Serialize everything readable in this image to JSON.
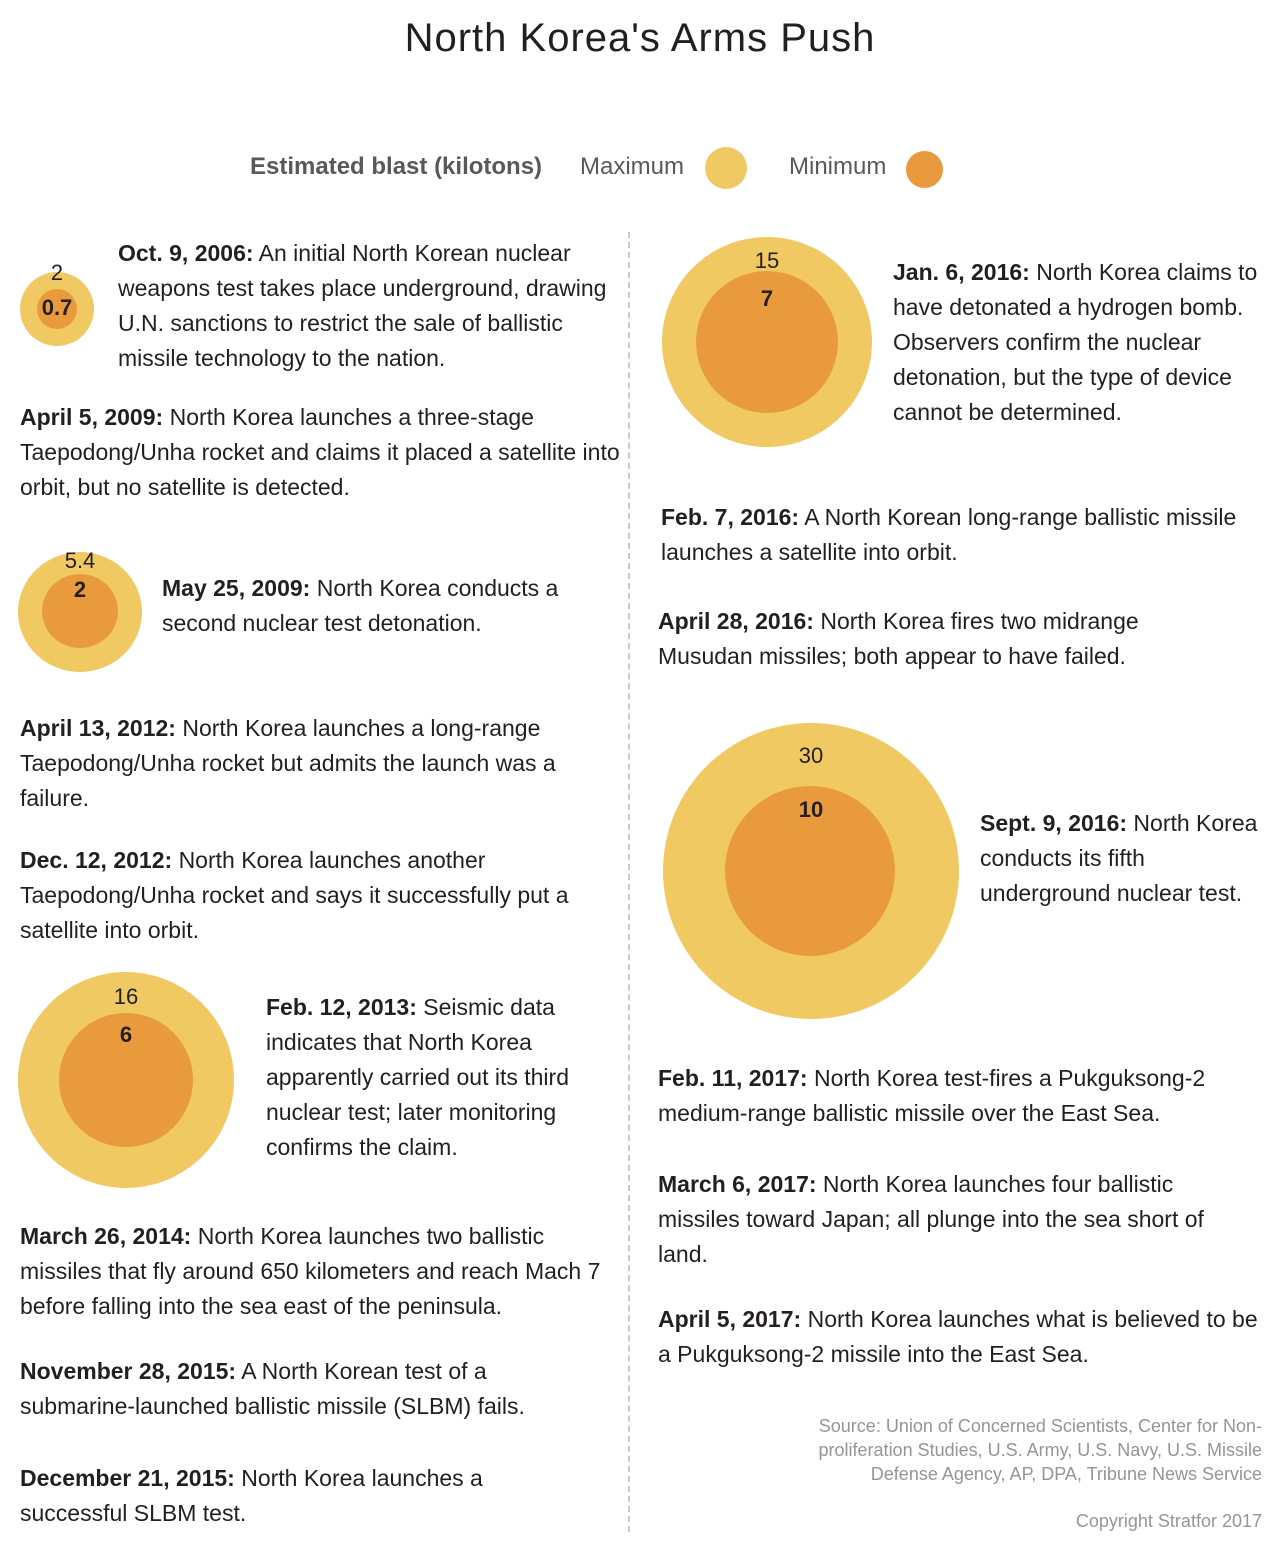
{
  "title": "North Korea's Arms Push",
  "legend": {
    "label_prefix": "Estimated blast",
    "label_units": "(kilotons)",
    "max_label": "Maximum",
    "min_label": "Minimum",
    "max_color": "#f0c963",
    "min_color": "#e99a3c"
  },
  "blasts": [
    {
      "date": "Oct. 9, 2006",
      "max": "2",
      "min": "0.7"
    },
    {
      "date": "May 25, 2009",
      "max": "5.4",
      "min": "2"
    },
    {
      "date": "Feb. 12, 2013",
      "max": "16",
      "min": "6"
    },
    {
      "date": "Jan. 6, 2016",
      "max": "15",
      "min": "7"
    },
    {
      "date": "Sept. 9, 2016",
      "max": "30",
      "min": "10"
    }
  ],
  "events": [
    {
      "date": "Oct. 9, 2006:",
      "text": "An initial North Korean nuclear weapons test takes place underground, drawing U.N. sanctions to restrict the sale of ballistic missile technology to the nation."
    },
    {
      "date": "April 5, 2009:",
      "text": "North Korea launches a three-stage Taepodong/Unha rocket and claims it placed a satellite into orbit, but no satellite is detected."
    },
    {
      "date": "May 25, 2009:",
      "text": "North Korea conducts a second nuclear test detonation."
    },
    {
      "date": "April 13, 2012:",
      "text": "North Korea launches a long-range Taepodong/Unha rocket but admits the launch was a failure."
    },
    {
      "date": "Dec. 12, 2012:",
      "text": "North Korea launches another Taepodong/Unha rocket and says it successfully put a satellite into orbit."
    },
    {
      "date": "Feb. 12, 2013:",
      "text": "Seismic data indicates that North Korea apparently carried out its third nuclear test; later monitoring confirms the claim."
    },
    {
      "date": "March 26, 2014:",
      "text": "North Korea launches two ballistic missiles that fly around 650 kilometers and reach Mach 7 before falling into the sea east of the peninsula."
    },
    {
      "date": "November 28, 2015:",
      "text": "A North Korean test of a submarine-launched ballistic missile (SLBM) fails."
    },
    {
      "date": "December 21, 2015:",
      "text": "North Korea launches a successful SLBM test."
    },
    {
      "date": "Jan. 6, 2016:",
      "text": "North Korea claims to have detonated a hydrogen bomb. Observers confirm the nuclear detonation, but the type of device cannot be determined."
    },
    {
      "date": "Feb. 7, 2016:",
      "text": "A North Korean long-range ballistic missile launches a satellite into orbit."
    },
    {
      "date": "April 28, 2016:",
      "text": "North Korea fires two midrange Musudan missiles; both appear to have failed."
    },
    {
      "date": "Sept. 9, 2016:",
      "text": "North Korea conducts its fifth underground nuclear test."
    },
    {
      "date": "Feb. 11, 2017:",
      "text": "North Korea test-fires a Pukguksong-2 medium-range ballistic missile over the East Sea."
    },
    {
      "date": "March 6, 2017:",
      "text": "North Korea launches four ballistic missiles toward Japan; all plunge into the sea short of land."
    },
    {
      "date": "April 5, 2017:",
      "text": "North Korea launches what is believed to be a Pukguksong-2 missile into the East Sea."
    }
  ],
  "source": "Source: Union of Concerned Scientists, Center for Non-proliferation Studies, U.S. Army, U.S. Navy, U.S. Missile Defense Agency, AP, DPA, Tribune News Service",
  "copyright": "Copyright Stratfor 2017"
}
